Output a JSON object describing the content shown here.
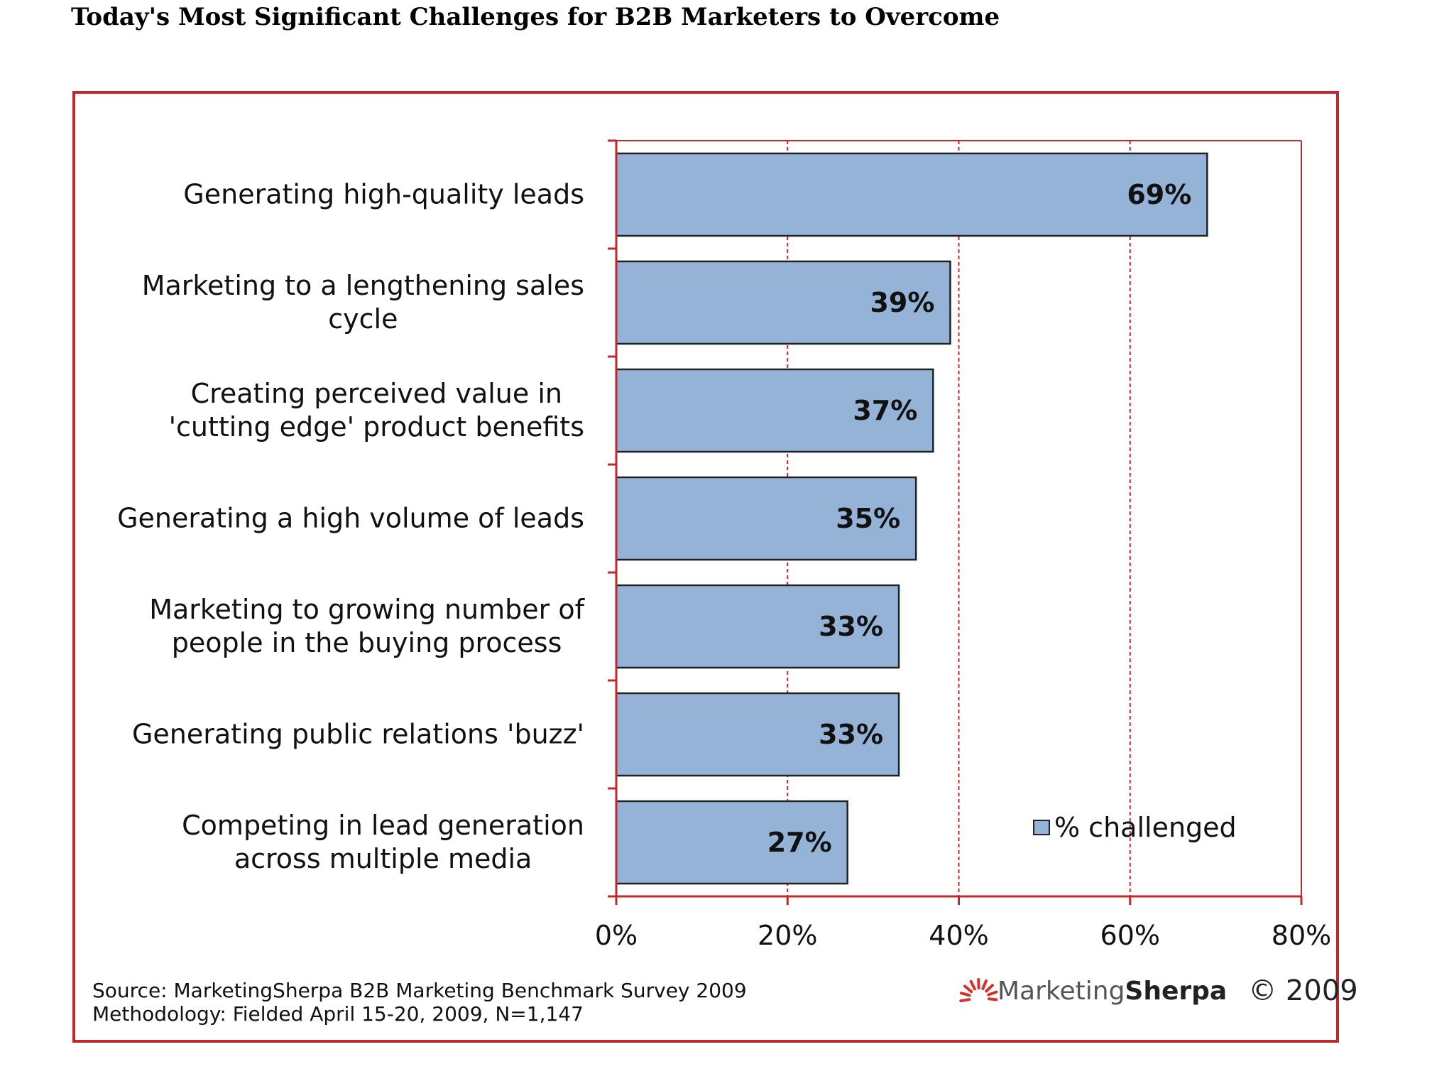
{
  "page": {
    "title": "Today's Most Significant Challenges for B2B Marketers to Overcome"
  },
  "chart_data": {
    "type": "bar",
    "orientation": "horizontal",
    "categories": [
      "Generating high-quality leads",
      "Marketing to a lengthening sales cycle",
      "Creating perceived value in 'cutting edge' product benefits",
      "Generating a high volume of leads",
      "Marketing to growing number of people in the buying process",
      "Generating public relations 'buzz'",
      "Competing in lead generation across multiple media"
    ],
    "category_lines": [
      [
        "Generating high-quality leads"
      ],
      [
        "Marketing to a lengthening sales",
        "cycle"
      ],
      [
        "Creating perceived value in",
        "'cutting edge' product benefits"
      ],
      [
        "Generating a high volume of leads"
      ],
      [
        "Marketing to growing number of",
        "people in the buying process"
      ],
      [
        "Generating public relations 'buzz'"
      ],
      [
        "Competing in lead generation",
        "across multiple media"
      ]
    ],
    "series": [
      {
        "name": "% challenged",
        "values": [
          69,
          39,
          37,
          35,
          33,
          33,
          27
        ]
      }
    ],
    "value_labels": [
      "69%",
      "39%",
      "37%",
      "35%",
      "33%",
      "33%",
      "27%"
    ],
    "xlim": [
      0,
      80
    ],
    "xticks": [
      0,
      20,
      40,
      60,
      80
    ],
    "xtick_labels": [
      "0%",
      "20%",
      "40%",
      "60%",
      "80%"
    ],
    "grid": "vertical dashed",
    "legend": "right",
    "bar_color": "#95b3d7",
    "grid_color": "#c0282e",
    "frame_color": "#c0282e"
  },
  "footer": {
    "source": "Source: MarketingSherpa B2B Marketing Benchmark Survey 2009",
    "methodology": "Methodology: Fielded April 15-20, 2009, N=1,147"
  },
  "brand": {
    "name_part1": "Marketing",
    "name_part2": "Sherpa",
    "copyright": "© 2009",
    "logo_icon": "sun-rays-icon",
    "accent_color": "#d4322c"
  }
}
